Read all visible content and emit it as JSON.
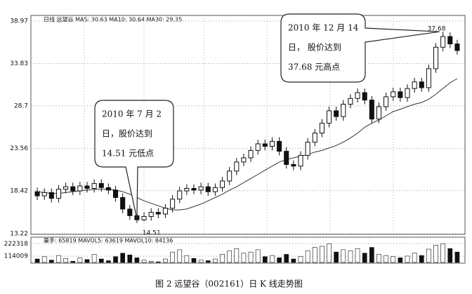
{
  "chart_data": {
    "type": "candlestick",
    "header": "日线 远望谷 MA5: 30.63 MA10: 30.64 MA30: 29.35",
    "volume_header": "量手: 65819 MAVOL5: 63619 MAVOL10: 84136",
    "caption": "图 2  远望谷（002161）日 K 线走势图",
    "annotations": [
      {
        "lines": [
          "2010 年 7 月 2",
          "日，股价达到",
          "14.51 元低点"
        ],
        "point_label": "14.51",
        "index": 14
      },
      {
        "lines": [
          "2010 年 12 月 14",
          "日， 股价达到",
          "37.68 元高点"
        ],
        "point_label": "37.68",
        "index": 57
      }
    ],
    "open": [
      18.3,
      17.8,
      18.2,
      17.5,
      18.6,
      18.9,
      18.4,
      19.0,
      18.7,
      19.3,
      18.8,
      18.5,
      17.6,
      16.2,
      15.4,
      14.9,
      15.3,
      15.8,
      15.6,
      16.3,
      17.4,
      18.4,
      18.7,
      18.5,
      18.9,
      18.3,
      18.8,
      19.6,
      20.8,
      21.9,
      22.4,
      23.3,
      24.1,
      23.8,
      24.4,
      23.2,
      21.6,
      21.4,
      22.7,
      24.3,
      25.4,
      26.6,
      28.1,
      27.4,
      28.9,
      29.6,
      30.3,
      29.4,
      27.1,
      28.6,
      29.8,
      30.4,
      29.7,
      30.8,
      31.6,
      30.9,
      33.2,
      35.8,
      37.1,
      36.2
    ],
    "high": [
      18.8,
      18.7,
      18.7,
      19.1,
      19.4,
      19.4,
      19.5,
      19.5,
      19.8,
      19.8,
      19.3,
      19.0,
      18.1,
      16.7,
      15.9,
      15.8,
      16.3,
      16.3,
      16.8,
      17.9,
      18.9,
      19.2,
      19.2,
      19.4,
      19.4,
      19.3,
      20.1,
      21.3,
      22.4,
      22.9,
      23.8,
      24.6,
      24.6,
      24.9,
      24.9,
      23.7,
      22.1,
      23.2,
      24.8,
      25.9,
      27.1,
      28.6,
      28.6,
      29.4,
      30.1,
      30.8,
      30.8,
      29.9,
      29.1,
      30.3,
      30.9,
      30.9,
      31.3,
      32.1,
      32.1,
      33.7,
      36.3,
      37.68,
      37.6,
      36.7
    ],
    "low": [
      17.3,
      17.3,
      17.0,
      17.0,
      18.1,
      17.9,
      17.9,
      18.2,
      18.2,
      18.3,
      18.0,
      17.1,
      15.7,
      14.9,
      14.51,
      14.7,
      14.8,
      15.1,
      15.1,
      15.8,
      16.9,
      17.9,
      18.0,
      18.0,
      17.8,
      17.8,
      18.3,
      19.1,
      20.3,
      21.4,
      21.9,
      22.8,
      23.3,
      23.3,
      22.7,
      21.1,
      20.9,
      20.9,
      22.2,
      23.8,
      24.9,
      26.1,
      26.9,
      26.9,
      28.4,
      29.1,
      28.9,
      26.6,
      26.6,
      28.1,
      29.3,
      29.2,
      29.2,
      30.3,
      30.4,
      30.4,
      32.7,
      35.3,
      35.7,
      34.9
    ],
    "close": [
      17.8,
      18.2,
      17.5,
      18.6,
      18.9,
      18.4,
      19.0,
      18.7,
      19.3,
      18.8,
      18.5,
      17.6,
      16.2,
      15.4,
      14.9,
      15.3,
      15.8,
      15.6,
      16.3,
      17.4,
      18.4,
      18.7,
      18.5,
      18.9,
      18.3,
      18.8,
      19.6,
      20.8,
      21.9,
      22.4,
      23.3,
      24.1,
      23.8,
      24.4,
      23.2,
      21.6,
      21.4,
      22.7,
      24.3,
      25.4,
      26.6,
      28.1,
      27.4,
      28.9,
      29.6,
      30.3,
      29.4,
      27.1,
      28.6,
      29.8,
      30.4,
      29.7,
      30.8,
      31.6,
      30.9,
      33.2,
      35.8,
      37.1,
      36.2,
      35.4
    ],
    "ma": [
      18.3,
      18.2,
      18.1,
      18.1,
      18.2,
      18.3,
      18.4,
      18.5,
      18.6,
      18.6,
      18.6,
      18.5,
      18.3,
      18.0,
      17.6,
      17.2,
      16.9,
      16.6,
      16.3,
      16.1,
      16.1,
      16.2,
      16.5,
      16.8,
      17.2,
      17.6,
      18.0,
      18.5,
      18.9,
      19.4,
      19.9,
      20.4,
      20.9,
      21.4,
      21.9,
      22.2,
      22.4,
      22.6,
      22.8,
      23.1,
      23.3,
      23.6,
      23.9,
      24.3,
      24.8,
      25.4,
      26.1,
      26.6,
      27.0,
      27.5,
      28.0,
      28.3,
      28.6,
      28.9,
      29.1,
      29.5,
      30.1,
      30.8,
      31.5,
      32.0
    ],
    "volume": [
      90000,
      110000,
      80000,
      120000,
      95000,
      70000,
      100000,
      85000,
      130000,
      90000,
      75000,
      110000,
      140000,
      125000,
      100000,
      80000,
      70000,
      65000,
      90000,
      150000,
      170000,
      120000,
      95000,
      80000,
      75000,
      90000,
      130000,
      160000,
      180000,
      140000,
      150000,
      170000,
      110000,
      120000,
      100000,
      130000,
      90000,
      110000,
      160000,
      190000,
      200000,
      220000,
      150000,
      170000,
      160000,
      180000,
      140000,
      190000,
      130000,
      120000,
      110000,
      100000,
      115000,
      140000,
      120000,
      175000,
      210000,
      222318,
      180000,
      150000
    ],
    "ylim": [
      13.22,
      38.97
    ],
    "yticks": [
      13.22,
      18.42,
      23.56,
      28.7,
      33.83,
      38.97
    ],
    "vol_ylim": [
      60000,
      230000
    ],
    "vol_yticks": [
      114009,
      222318
    ],
    "grid": true
  }
}
